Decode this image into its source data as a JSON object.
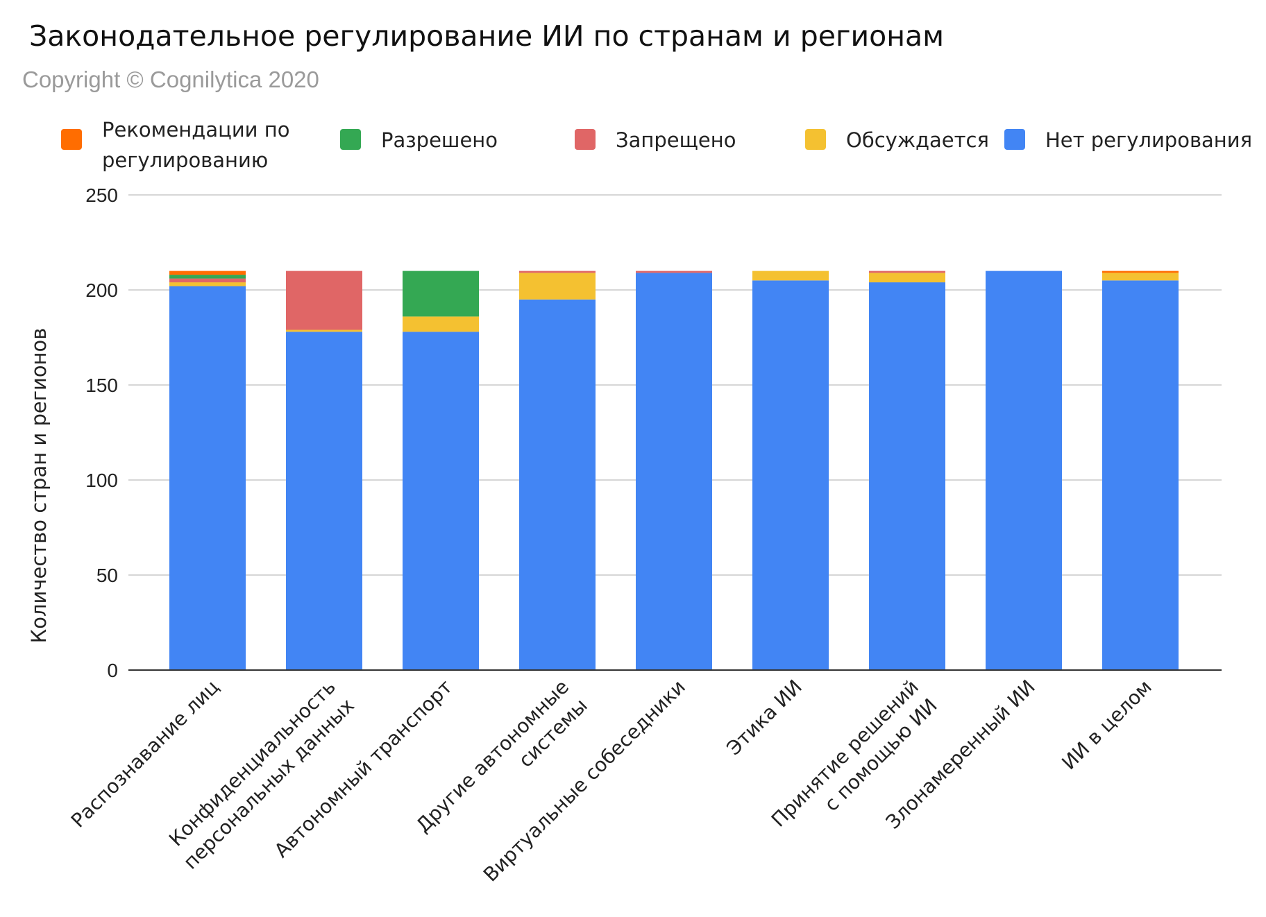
{
  "chart_data": {
    "type": "bar",
    "stacked": true,
    "title": "Законодательное регулирование ИИ по странам и регионам",
    "subtitle": "Copyright © Cognilytica 2020",
    "xlabel": "",
    "ylabel": "Количество стран и регионов",
    "ylim": [
      0,
      250
    ],
    "yticks": [
      0,
      50,
      100,
      150,
      200,
      250
    ],
    "grid": true,
    "legend_position": "top",
    "categories": [
      [
        "Распознавание лиц"
      ],
      [
        "Конфиденциальность",
        "персональных данных"
      ],
      [
        "Автономный транспорт"
      ],
      [
        "Другие автономные",
        "системы"
      ],
      [
        "Виртуальные собеседники"
      ],
      [
        "Этика ИИ"
      ],
      [
        "Принятие решений",
        "с помощью ИИ"
      ],
      [
        "Злонамеренный ИИ"
      ],
      [
        "ИИ в целом"
      ]
    ],
    "series": [
      {
        "name": "Нет регулирования",
        "color": "#4285f4",
        "values": [
          202,
          178,
          178,
          195,
          209,
          205,
          204,
          210,
          205
        ]
      },
      {
        "name": "Обсуждается",
        "color": "#f4c131",
        "values": [
          2,
          1,
          8,
          14,
          0,
          5,
          5,
          0,
          4
        ]
      },
      {
        "name": "Запрещено",
        "color": "#e06666",
        "values": [
          2,
          31,
          0,
          1,
          1,
          0,
          1,
          0,
          0
        ]
      },
      {
        "name": "Разрешено",
        "color": "#34a853",
        "values": [
          2,
          0,
          24,
          0,
          0,
          0,
          0,
          0,
          0
        ]
      },
      {
        "name": "Рекомендации по регулированию",
        "color": "#ff6d01",
        "values": [
          2,
          0,
          0,
          0,
          0,
          0,
          0,
          0,
          1
        ]
      }
    ],
    "legend": [
      {
        "lines": [
          "Рекомендации по",
          "регулированию"
        ],
        "color": "#ff6d01"
      },
      {
        "lines": [
          "Разрешено"
        ],
        "color": "#34a853"
      },
      {
        "lines": [
          "Запрещено"
        ],
        "color": "#e06666"
      },
      {
        "lines": [
          "Обсуждается"
        ],
        "color": "#f4c131"
      },
      {
        "lines": [
          "Нет регулирования"
        ],
        "color": "#4285f4"
      }
    ]
  }
}
